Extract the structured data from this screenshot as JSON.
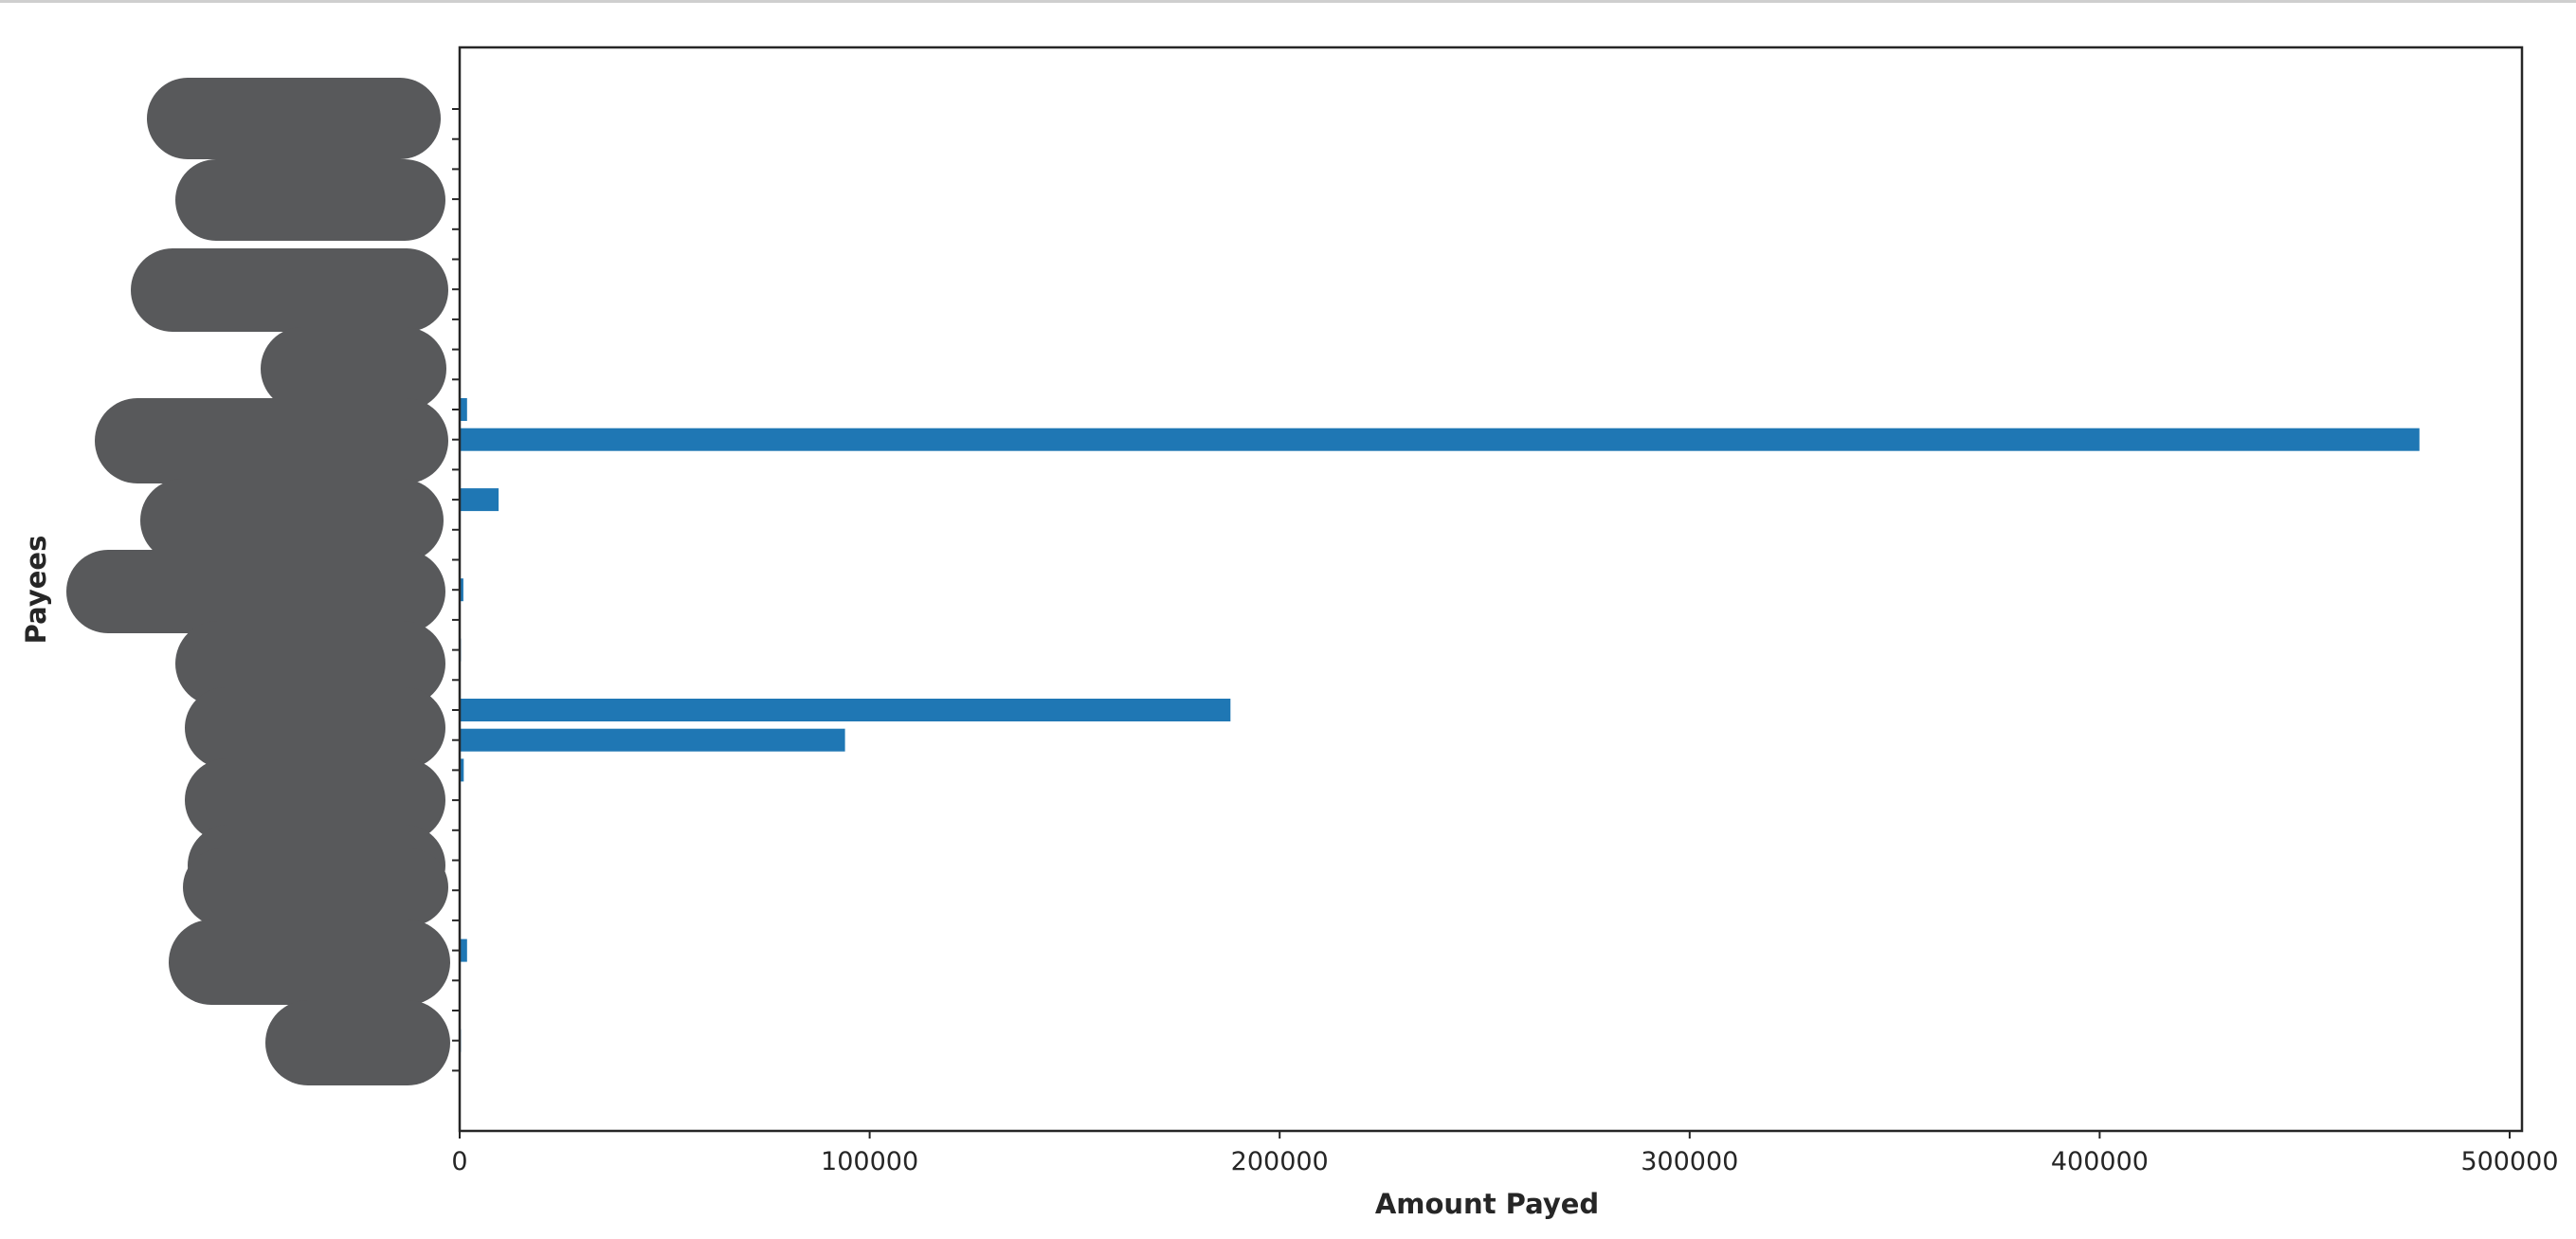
{
  "chart_data": {
    "type": "bar",
    "orientation": "horizontal",
    "xlabel": "Amount Payed",
    "ylabel": "Payees",
    "xlim": [
      0,
      503000
    ],
    "xticks": [
      0,
      100000,
      200000,
      300000,
      400000,
      500000
    ],
    "xtick_labels": [
      "0",
      "100000",
      "200000",
      "300000",
      "400000",
      "500000"
    ],
    "category_labels_redacted": true,
    "bar_color": "#1f77b4",
    "grid": false,
    "values": [
      0,
      0,
      0,
      0,
      0,
      0,
      0,
      0,
      0,
      0,
      1800,
      478000,
      0,
      9500,
      0,
      0,
      900,
      0,
      300,
      0,
      188000,
      94000,
      1000,
      0,
      0,
      0,
      0,
      0,
      1800,
      0,
      0,
      300,
      0
    ]
  }
}
